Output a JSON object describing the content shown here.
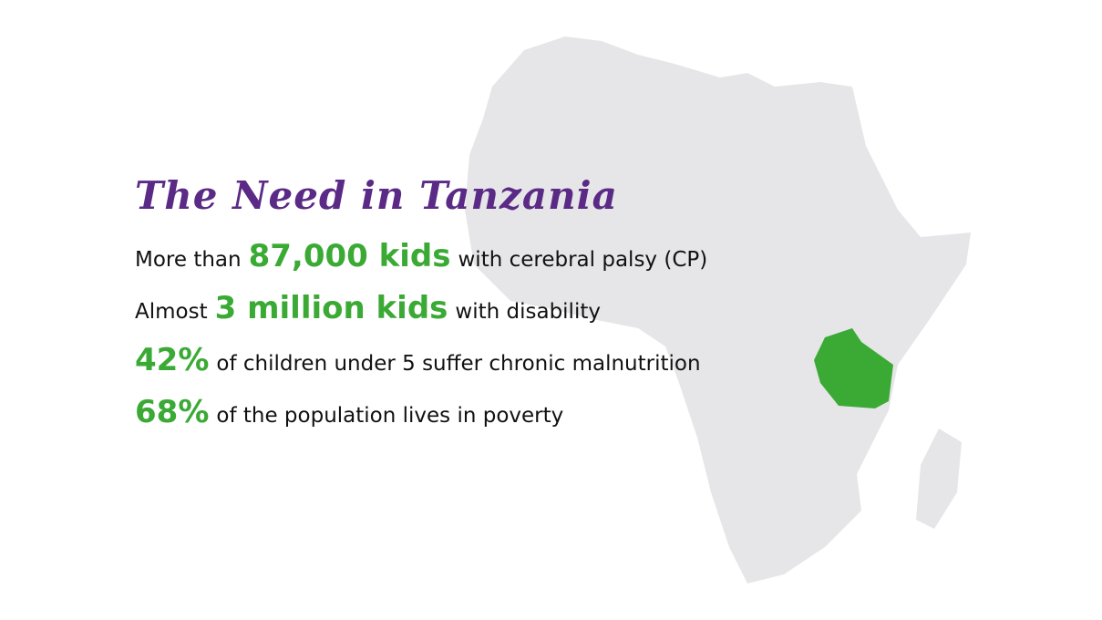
{
  "title": "The Need in Tanzania",
  "stats": [
    {
      "lead": "More than",
      "highlight": "87,000 kids",
      "text": "with cerebral palsy (CP)"
    },
    {
      "lead": "Almost",
      "highlight": "3 million kids",
      "text": "with disability"
    },
    {
      "highlight": "42%",
      "text": "of children under 5 suffer chronic malnutrition"
    },
    {
      "highlight": "68%",
      "text": "of the population lives in poverty"
    }
  ]
}
